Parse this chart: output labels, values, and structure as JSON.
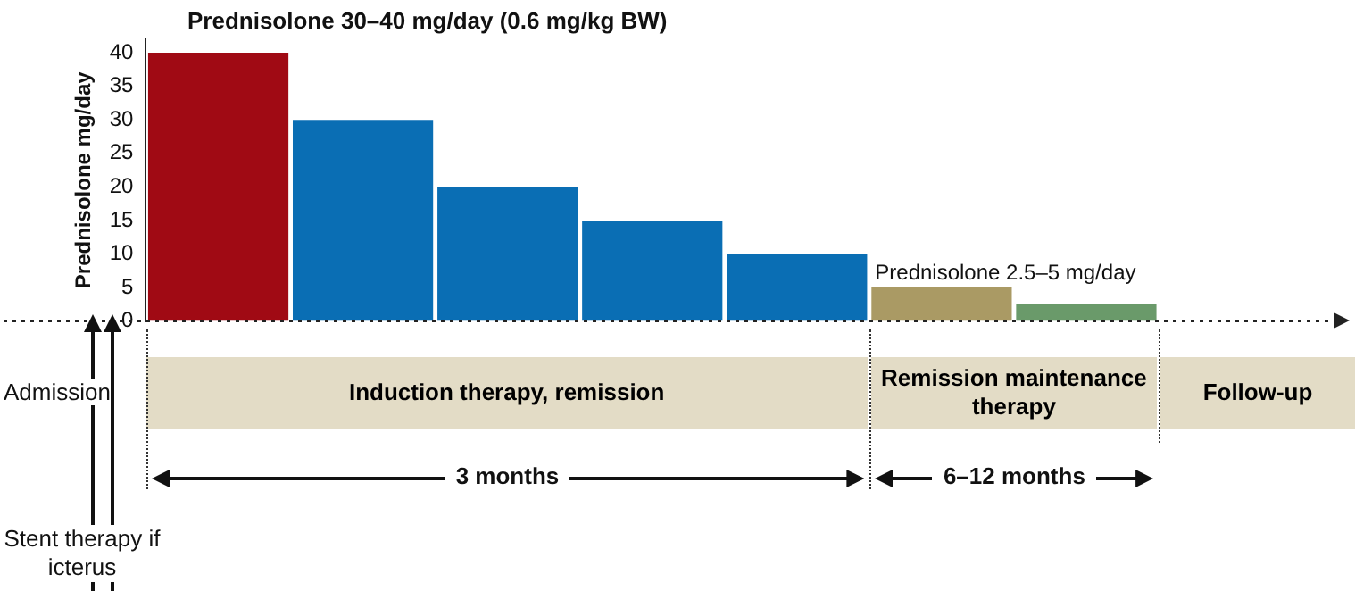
{
  "chart_data": {
    "type": "bar",
    "title": "Prednisolone 30–40 mg/day (0.6 mg/kg BW)",
    "ylabel": "Prednisolone mg/day",
    "categories": [
      null,
      null,
      null,
      null,
      null,
      null,
      null
    ],
    "values": [
      40,
      30,
      20,
      15,
      10,
      5,
      2.5
    ],
    "colors": [
      "#a00a14",
      "#0a6eb4",
      "#0a6eb4",
      "#0a6eb4",
      "#0a6eb4",
      "#aa9a64",
      "#6a9a6a"
    ],
    "ylim": [
      0,
      42
    ],
    "yticks": [
      0,
      5,
      10,
      15,
      20,
      25,
      30,
      35,
      40
    ],
    "grid": false,
    "legend": false,
    "tick_labels": "y",
    "annotations": [
      "Prednisolone 2.5–5 mg/day",
      "Induction therapy, remission",
      "Remission maintenance therapy",
      "Follow-up",
      "3 months",
      "6–12 months",
      "Admission",
      "Stent therapy if icterus"
    ]
  }
}
